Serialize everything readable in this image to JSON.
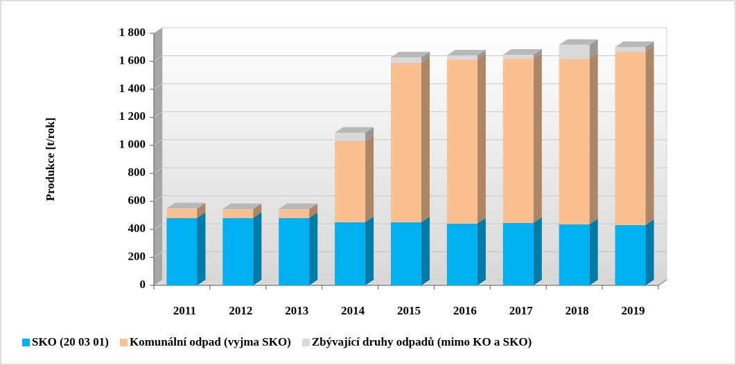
{
  "chart_data": {
    "type": "bar",
    "y_label": "Produkce [t/rok]",
    "categories": [
      "2011",
      "2012",
      "2013",
      "2014",
      "2015",
      "2016",
      "2017",
      "2018",
      "2019"
    ],
    "series": [
      {
        "name": "SKO (20 03 01)",
        "color": "#00b0f0",
        "values": [
          480,
          480,
          480,
          450,
          450,
          440,
          445,
          435,
          430
        ]
      },
      {
        "name": "Komunální odpad (vyjma SKO)",
        "color": "#fac090",
        "values": [
          65,
          60,
          60,
          580,
          1138,
          1172,
          1172,
          1182,
          1237
        ]
      },
      {
        "name": "Zbývající druhy odpadů (mimo KO a SKO)",
        "color": "#d9d9d9",
        "values": [
          5,
          5,
          5,
          60,
          40,
          30,
          30,
          100,
          35
        ]
      }
    ],
    "ylim": [
      0,
      1800
    ],
    "yticks": [
      0,
      200,
      400,
      600,
      800,
      {
        "value": 1000,
        "label": "1 000"
      },
      {
        "value": 1200,
        "label": "1 200"
      },
      {
        "value": 1400,
        "label": "1 400"
      },
      {
        "value": 1600,
        "label": "1 600"
      },
      {
        "value": 1800,
        "label": "1 800"
      }
    ],
    "stacked": true,
    "grid": true,
    "legend": "bottom"
  }
}
